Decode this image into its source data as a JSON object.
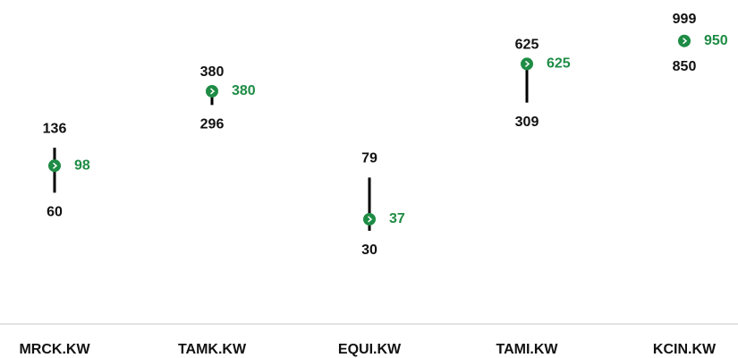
{
  "chart_data": {
    "type": "range",
    "categories": [
      "MRCK.KW",
      "TAMK.KW",
      "EQUI.KW",
      "TAMI.KW",
      "KCIN.KW"
    ],
    "highs": [
      136,
      380,
      79,
      625,
      999
    ],
    "lows": [
      60,
      296,
      30,
      309,
      850
    ],
    "values": [
      98,
      380,
      37,
      625,
      950
    ],
    "color": "#1e8c45",
    "range_color": "#000000",
    "log_scale": true,
    "ylim": [
      5.5,
      2000
    ]
  }
}
